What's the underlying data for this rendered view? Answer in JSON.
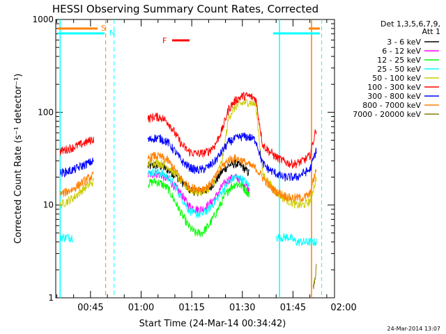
{
  "chart_data": {
    "type": "line",
    "title": "HESSI Observing Summary Count Rates, Corrected",
    "xlabel": "Start Time (24-Mar-14 00:34:42)",
    "ylabel": "Corrected Count Rate (s⁻¹ detector⁻¹)",
    "y_scale": "log",
    "ylim": [
      1,
      1000
    ],
    "y_ticks": [
      1,
      10,
      100,
      1000
    ],
    "y_tick_labels": [
      "1",
      "10",
      "100",
      "1000"
    ],
    "x_ticks": [
      "00:45",
      "01:00",
      "01:15",
      "01:30",
      "01:45",
      "02:00"
    ],
    "legend": {
      "placement": "top-right outside",
      "header": [
        "Det 1,3,5,6,7,9,",
        "Att 1"
      ],
      "entries": [
        {
          "label": "3 - 6 keV",
          "color": "#000000"
        },
        {
          "label": "6 - 12 keV",
          "color": "#ff00ff"
        },
        {
          "label": "12 - 25 keV",
          "color": "#00ff00"
        },
        {
          "label": "25 - 50 keV",
          "color": "#00ffff"
        },
        {
          "label": "50 - 100 keV",
          "color": "#cccc00"
        },
        {
          "label": "100 - 300 keV",
          "color": "#ff0000"
        },
        {
          "label": "300 - 800 keV",
          "color": "#0000ff"
        },
        {
          "label": "800 - 7000 keV",
          "color": "#ff8000"
        },
        {
          "label": "7000 - 20000 keV",
          "color": "#808000"
        }
      ]
    },
    "flags": [
      {
        "label": "S",
        "color": "#ff8000"
      },
      {
        "label": "N",
        "color": "#00ffff"
      },
      {
        "label": "F",
        "color": "#ff0000"
      }
    ],
    "series": [
      {
        "name": "3 - 6 keV",
        "color": "#000000",
        "t": [
          62,
          64,
          66,
          68,
          70,
          72,
          74,
          76,
          78,
          80,
          82,
          84,
          86,
          88,
          90,
          92
        ],
        "values": [
          26,
          27,
          26,
          24,
          21,
          18,
          15,
          14,
          14,
          15,
          18,
          23,
          27,
          28,
          26,
          22
        ]
      },
      {
        "name": "6 - 12 keV",
        "color": "#ff00ff",
        "t": [
          62,
          64,
          66,
          68,
          70,
          72,
          74,
          76,
          78,
          80,
          82,
          84,
          86,
          88,
          90,
          92
        ],
        "values": [
          21,
          22,
          21,
          19,
          16,
          13,
          10,
          9,
          9,
          10,
          12,
          16,
          19,
          20,
          18,
          15
        ]
      },
      {
        "name": "12 - 25 keV",
        "color": "#00ff00",
        "t": [
          62,
          64,
          66,
          68,
          70,
          72,
          74,
          76,
          78,
          80,
          82,
          84,
          86,
          88,
          90,
          92
        ],
        "values": [
          17,
          18,
          17,
          15,
          11,
          8,
          6,
          5,
          5,
          6,
          8,
          11,
          15,
          17,
          16,
          13
        ]
      },
      {
        "name": "25 - 50 keV",
        "color": "#00ffff",
        "t": [
          36,
          38,
          40,
          62,
          64,
          66,
          68,
          70,
          72,
          74,
          76,
          78,
          80,
          82,
          84,
          86,
          88,
          90,
          92,
          100,
          102,
          104,
          106,
          108,
          110,
          112
        ],
        "values": [
          4.5,
          4.5,
          4.5,
          22,
          23,
          22,
          20,
          16,
          12,
          9,
          8,
          8,
          9,
          11,
          14,
          18,
          20,
          19,
          16,
          4.5,
          4.5,
          4.5,
          4,
          4,
          4,
          4
        ]
      },
      {
        "name": "50 - 100 keV",
        "color": "#cccc00",
        "t": [
          36,
          38,
          40,
          42,
          44,
          46,
          62,
          64,
          66,
          68,
          70,
          72,
          74,
          76,
          78,
          80,
          82,
          84,
          86,
          88,
          90,
          92,
          94,
          96,
          98,
          100,
          102,
          104,
          106,
          108,
          110,
          112
        ],
        "values": [
          10,
          11,
          12,
          14,
          16,
          18,
          28,
          29,
          28,
          26,
          22,
          18,
          15,
          14,
          14,
          15,
          19,
          30,
          90,
          115,
          125,
          130,
          120,
          22,
          17,
          14,
          12,
          11,
          10,
          10,
          11,
          20
        ]
      },
      {
        "name": "100 - 300 keV",
        "color": "#ff0000",
        "t": [
          36,
          38,
          40,
          42,
          44,
          46,
          62,
          64,
          66,
          68,
          70,
          72,
          74,
          76,
          78,
          80,
          82,
          84,
          86,
          88,
          90,
          92,
          94,
          96,
          98,
          100,
          102,
          104,
          106,
          108,
          110,
          112
        ],
        "values": [
          38,
          40,
          42,
          45,
          48,
          52,
          85,
          90,
          88,
          78,
          60,
          45,
          38,
          36,
          36,
          38,
          45,
          65,
          110,
          135,
          150,
          150,
          140,
          45,
          38,
          33,
          30,
          28,
          28,
          30,
          34,
          70
        ]
      },
      {
        "name": "300 - 800 keV",
        "color": "#0000ff",
        "t": [
          36,
          38,
          40,
          42,
          44,
          46,
          62,
          64,
          66,
          68,
          70,
          72,
          74,
          76,
          78,
          80,
          82,
          84,
          86,
          88,
          90,
          92,
          94,
          96,
          98,
          100,
          102,
          104,
          106,
          108,
          110,
          112
        ],
        "values": [
          22,
          23,
          24,
          26,
          28,
          30,
          50,
          53,
          52,
          47,
          38,
          30,
          26,
          24,
          24,
          26,
          30,
          38,
          48,
          52,
          55,
          54,
          50,
          28,
          24,
          22,
          20,
          20,
          20,
          22,
          24,
          40
        ]
      },
      {
        "name": "800 - 7000 keV",
        "color": "#ff8000",
        "t": [
          36,
          38,
          40,
          42,
          44,
          46,
          62,
          64,
          66,
          68,
          70,
          72,
          74,
          76,
          78,
          80,
          82,
          84,
          86,
          88,
          90,
          92,
          94,
          96,
          98,
          100,
          102,
          104,
          106,
          108,
          110,
          112
        ],
        "values": [
          13,
          14,
          15,
          17,
          19,
          21,
          32,
          34,
          33,
          30,
          24,
          19,
          16,
          15,
          15,
          16,
          20,
          26,
          31,
          32,
          30,
          27,
          25,
          20,
          16,
          14,
          13,
          12,
          12,
          12,
          13,
          25
        ]
      },
      {
        "name": "7000 - 20000 keV",
        "color": "#808000",
        "t": [
          111,
          111.5,
          112
        ],
        "values": [
          1.3,
          1.5,
          2.5
        ]
      }
    ]
  },
  "footer": {
    "timestamp": "24-Mar-2014 13:07"
  }
}
